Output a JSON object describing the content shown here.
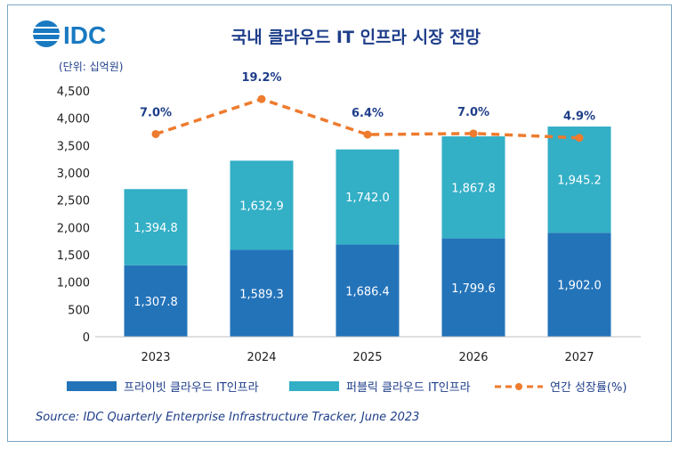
{
  "brand": {
    "logo_text": "IDC"
  },
  "chart_data": {
    "type": "bar",
    "stacked": true,
    "title": "국내 클라우드 IT 인프라 시장 전망",
    "unit_label": "(단위: 십억원)",
    "categories": [
      "2023",
      "2024",
      "2025",
      "2026",
      "2027"
    ],
    "ylim": [
      0,
      4500
    ],
    "yticks": [
      0,
      500,
      1000,
      1500,
      2000,
      2500,
      3000,
      3500,
      4000,
      4500
    ],
    "ytick_labels": [
      "0",
      "500",
      "1,000",
      "1,500",
      "2,000",
      "2,500",
      "3,000",
      "3,500",
      "4,000",
      "4,500"
    ],
    "series": [
      {
        "name": "프라이빗 클라우드 IT인프라",
        "color": "#2373b9",
        "values": [
          1307.8,
          1589.3,
          1686.4,
          1799.6,
          1902.0
        ],
        "labels": [
          "1,307.8",
          "1,589.3",
          "1,686.4",
          "1,799.6",
          "1,902.0"
        ]
      },
      {
        "name": "퍼블릭 클라우드 IT인프라",
        "color": "#33afc6",
        "values": [
          1394.8,
          1632.9,
          1742.0,
          1867.8,
          1945.2
        ],
        "labels": [
          "1,394.8",
          "1,632.9",
          "1,742.0",
          "1,867.8",
          "1,945.2"
        ]
      }
    ],
    "growth": {
      "name": "연간 성장률(%)",
      "color": "#ee7b2e",
      "values": [
        7.0,
        19.2,
        6.4,
        7.0,
        4.9
      ],
      "labels": [
        "7.0%",
        "19.2%",
        "6.4%",
        "7.0%",
        "4.9%"
      ],
      "plot_positions": [
        3710,
        4350,
        3700,
        3720,
        3640
      ]
    }
  },
  "source": "Source: IDC Quarterly Enterprise Infrastructure Tracker, June 2023"
}
